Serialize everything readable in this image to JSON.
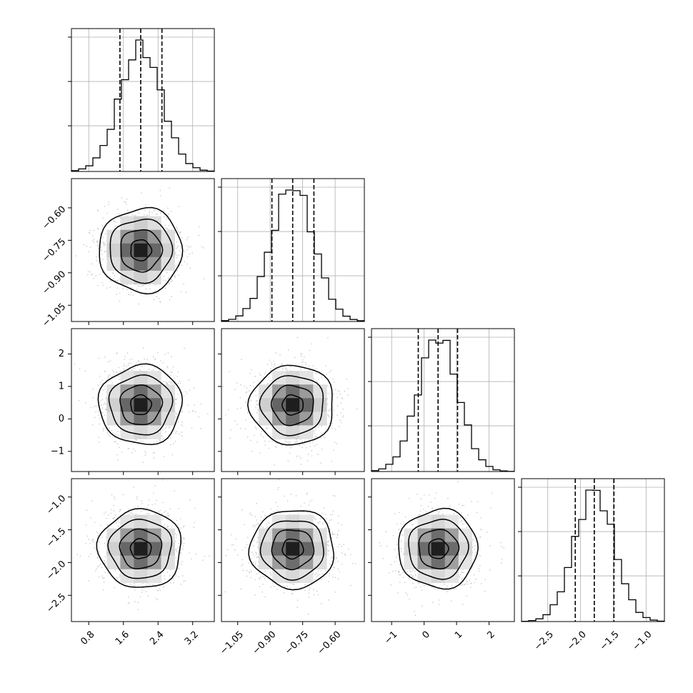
{
  "chart_data": {
    "type": "corner",
    "title": "",
    "grid": true,
    "colors": {
      "hist": "#000000",
      "contour": "#000000",
      "points": "#9e9e9e",
      "grid": "#b0b0b0",
      "density_max": "#1e1e1e"
    },
    "parameters": [
      {
        "index": 0,
        "range": [
          0.4,
          3.7
        ],
        "ticks": [
          0.8,
          1.6,
          2.4,
          3.2
        ],
        "tick_labels": [
          "0.8",
          "1.6",
          "2.4",
          "3.2"
        ],
        "quantiles": [
          1.52,
          2.0,
          2.49
        ],
        "median": 2.0,
        "sigma": 0.48,
        "hist_ticks": [
          0.34,
          0.67,
          1.0
        ]
      },
      {
        "index": 1,
        "range": [
          -1.125,
          -0.465
        ],
        "ticks": [
          -1.05,
          -0.9,
          -0.75,
          -0.6
        ],
        "tick_labels": [
          "−1.05",
          "−0.90",
          "−0.75",
          "−0.60"
        ],
        "quantiles": [
          -0.892,
          -0.796,
          -0.698
        ],
        "median": -0.796,
        "sigma": 0.097,
        "hist_ticks": [
          0.34,
          0.67,
          1.0
        ]
      },
      {
        "index": 2,
        "range": [
          -1.62,
          2.78
        ],
        "ticks": [
          -1,
          0,
          1,
          2
        ],
        "tick_labels": [
          "−1",
          "0",
          "1",
          "2"
        ],
        "quantiles": [
          -0.18,
          0.43,
          1.03
        ],
        "median": 0.43,
        "sigma": 0.61,
        "hist_ticks": [
          0.34,
          0.67,
          1.0
        ]
      },
      {
        "index": 3,
        "range": [
          -2.9,
          -0.72
        ],
        "ticks": [
          -2.5,
          -2.0,
          -1.5,
          -1.0
        ],
        "tick_labels": [
          "−2.5",
          "−2.0",
          "−1.5",
          "−1.0"
        ],
        "quantiles": [
          -2.08,
          -1.79,
          -1.49
        ],
        "median": -1.79,
        "sigma": 0.3,
        "hist_ticks": [
          0.34,
          0.67,
          1.0
        ]
      }
    ],
    "contour_levels_sigma": [
      0.5,
      1.0,
      1.5,
      2.0
    ],
    "hist_bins": 20
  }
}
